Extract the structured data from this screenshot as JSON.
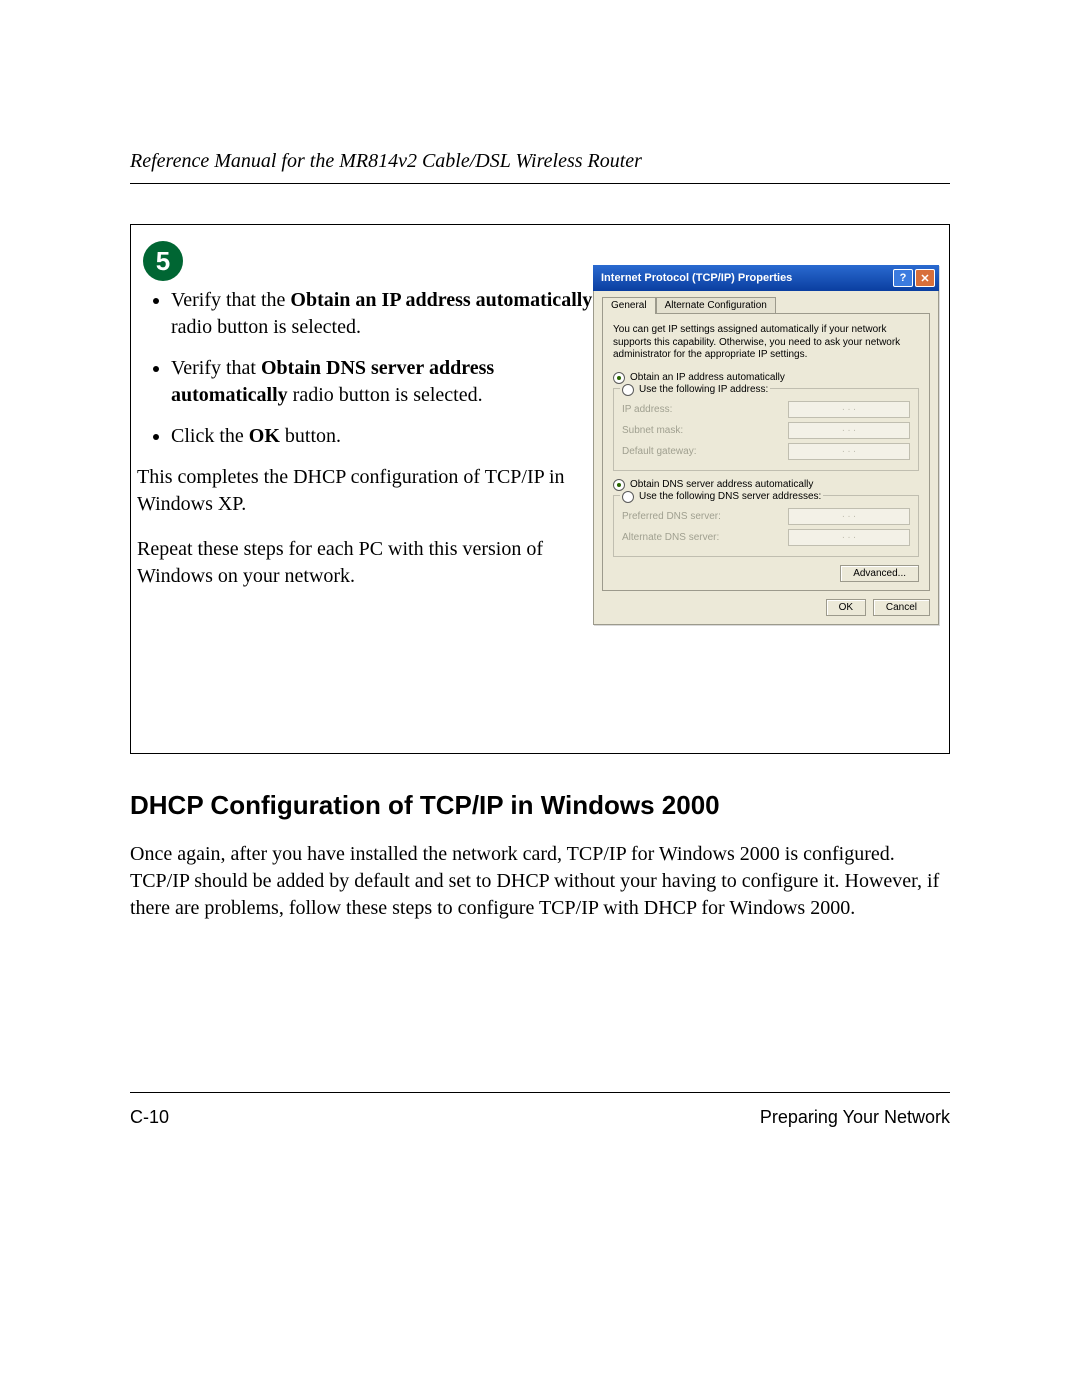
{
  "header": {
    "title": "Reference Manual for the MR814v2 Cable/DSL Wireless Router"
  },
  "step": {
    "number": "5",
    "bullets": [
      {
        "pre": "Verify that the ",
        "bold": "Obtain an IP address automatically",
        "post": " radio button is selected."
      },
      {
        "pre": "Verify that ",
        "bold": "Obtain DNS server address automatically",
        "post": " radio button is selected."
      },
      {
        "pre": "Click the ",
        "bold": "OK",
        "post": " button."
      }
    ],
    "para1": "This completes the DHCP configuration of TCP/IP in Windows XP.",
    "para2": "Repeat these steps for each PC with this version of Windows on your network."
  },
  "dialog": {
    "title": "Internet Protocol (TCP/IP) Properties",
    "help_glyph": "?",
    "close_glyph": "✕",
    "tabs": {
      "general": "General",
      "alt": "Alternate Configuration"
    },
    "desc": "You can get IP settings assigned automatically if your network supports this capability. Otherwise, you need to ask your network administrator for the appropriate IP settings.",
    "radio_ip_auto": "Obtain an IP address automatically",
    "radio_ip_manual": "Use the following IP address:",
    "fields_ip": {
      "ip": "IP address:",
      "mask": "Subnet mask:",
      "gw": "Default gateway:"
    },
    "radio_dns_auto": "Obtain DNS server address automatically",
    "radio_dns_manual": "Use the following DNS server addresses:",
    "fields_dns": {
      "pref": "Preferred DNS server:",
      "alt": "Alternate DNS server:"
    },
    "ip_dots": ".       .       .",
    "advanced": "Advanced...",
    "ok": "OK",
    "cancel": "Cancel"
  },
  "section": {
    "title": "DHCP Configuration of TCP/IP in Windows 2000",
    "body": "Once again, after you have installed the network card, TCP/IP for Windows 2000 is configured. TCP/IP should be added by default and set to DHCP without your having to configure it. However, if there are problems, follow these steps to configure TCP/IP with DHCP for Windows 2000."
  },
  "footer": {
    "left": "C-10",
    "right": "Preparing Your Network"
  }
}
